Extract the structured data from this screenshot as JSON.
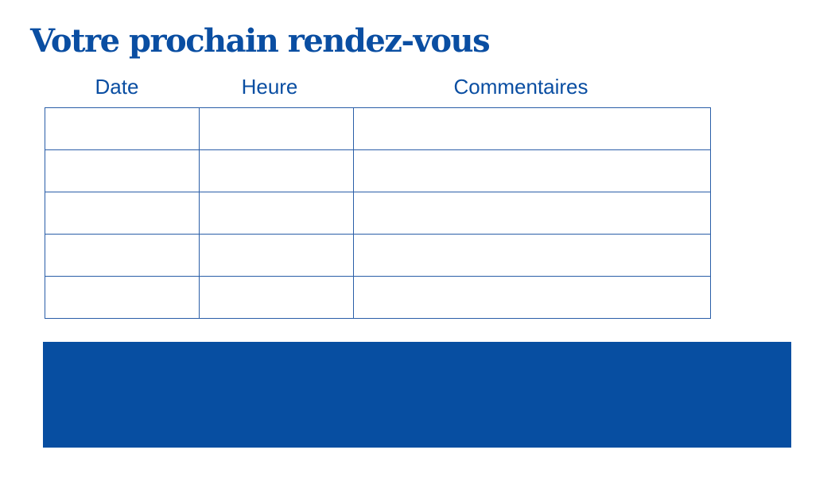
{
  "title": "Votre prochain rendez-vous",
  "table": {
    "columns": [
      "Date",
      "Heure",
      "Commentaires"
    ],
    "rows": [
      [
        "",
        "",
        ""
      ],
      [
        "",
        "",
        ""
      ],
      [
        "",
        "",
        ""
      ],
      [
        "",
        "",
        ""
      ],
      [
        "",
        "",
        ""
      ]
    ]
  },
  "colors": {
    "brand_blue": "#074ea1"
  }
}
